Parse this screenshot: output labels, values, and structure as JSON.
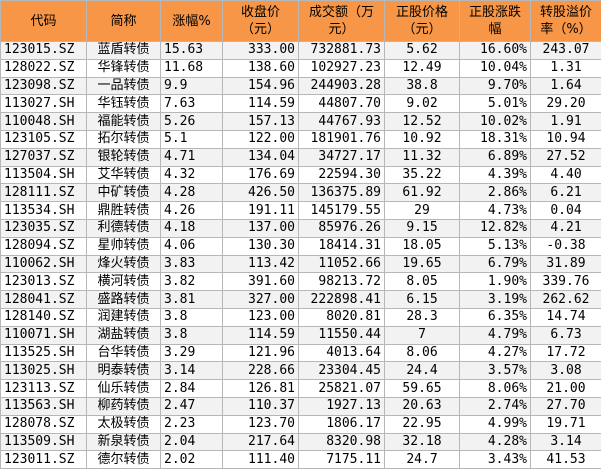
{
  "table": {
    "header": [
      "代码",
      "简称",
      "涨幅%",
      "收盘价（元）",
      "成交额（万元）",
      "正股价格（元）",
      "正股涨跌幅",
      "转股溢价率（%）"
    ],
    "rows": [
      [
        "123015.SZ",
        "蓝盾转债",
        "15.63",
        "333.00",
        "732881.73",
        "5.62",
        "16.60%",
        "243.07"
      ],
      [
        "128022.SZ",
        "华锋转债",
        "11.68",
        "138.60",
        "102927.23",
        "12.49",
        "10.04%",
        "1.31"
      ],
      [
        "123098.SZ",
        "一品转债",
        "9.9",
        "154.96",
        "244903.28",
        "38.8",
        "9.70%",
        "1.64"
      ],
      [
        "113027.SH",
        "华钰转债",
        "7.63",
        "114.59",
        "44807.70",
        "9.02",
        "5.01%",
        "29.20"
      ],
      [
        "110048.SH",
        "福能转债",
        "5.26",
        "157.13",
        "44767.93",
        "12.52",
        "10.02%",
        "1.91"
      ],
      [
        "123105.SZ",
        "拓尔转债",
        "5.1",
        "122.00",
        "181901.76",
        "10.92",
        "18.31%",
        "10.94"
      ],
      [
        "127037.SZ",
        "银轮转债",
        "4.71",
        "134.04",
        "34727.17",
        "11.32",
        "6.89%",
        "27.52"
      ],
      [
        "113504.SH",
        "艾华转债",
        "4.32",
        "176.69",
        "22594.30",
        "35.22",
        "4.39%",
        "4.40"
      ],
      [
        "128111.SZ",
        "中矿转债",
        "4.28",
        "426.50",
        "136375.89",
        "61.92",
        "2.86%",
        "6.21"
      ],
      [
        "113534.SH",
        "鼎胜转债",
        "4.26",
        "191.11",
        "145179.55",
        "29",
        "4.73%",
        "0.04"
      ],
      [
        "123035.SZ",
        "利德转债",
        "4.18",
        "137.00",
        "85976.26",
        "9.15",
        "12.82%",
        "4.21"
      ],
      [
        "128094.SZ",
        "星帅转债",
        "4.06",
        "130.30",
        "18414.31",
        "18.05",
        "5.13%",
        "-0.38"
      ],
      [
        "110062.SH",
        "烽火转债",
        "3.83",
        "113.42",
        "11052.66",
        "19.65",
        "6.79%",
        "31.89"
      ],
      [
        "123013.SZ",
        "横河转债",
        "3.82",
        "391.60",
        "98213.72",
        "8.05",
        "1.90%",
        "339.76"
      ],
      [
        "128041.SZ",
        "盛路转债",
        "3.81",
        "327.00",
        "222898.41",
        "6.15",
        "3.19%",
        "262.62"
      ],
      [
        "128140.SZ",
        "润建转债",
        "3.8",
        "123.00",
        "8020.81",
        "28.3",
        "6.35%",
        "14.74"
      ],
      [
        "110071.SH",
        "湖盐转债",
        "3.8",
        "114.59",
        "11550.44",
        "7",
        "4.79%",
        "6.73"
      ],
      [
        "113525.SH",
        "台华转债",
        "3.29",
        "121.96",
        "4013.64",
        "8.06",
        "4.27%",
        "17.72"
      ],
      [
        "113025.SH",
        "明泰转债",
        "3.14",
        "228.66",
        "23304.45",
        "24.4",
        "3.57%",
        "3.08"
      ],
      [
        "123113.SZ",
        "仙乐转债",
        "2.84",
        "126.81",
        "25821.07",
        "59.65",
        "8.06%",
        "21.00"
      ],
      [
        "113563.SH",
        "柳药转债",
        "2.47",
        "110.37",
        "1927.13",
        "20.63",
        "2.74%",
        "27.70"
      ],
      [
        "128078.SZ",
        "太极转债",
        "2.23",
        "123.70",
        "1806.17",
        "22.95",
        "4.99%",
        "19.71"
      ],
      [
        "113509.SH",
        "新泉转债",
        "2.04",
        "217.64",
        "8320.98",
        "32.18",
        "4.28%",
        "3.14"
      ],
      [
        "123011.SZ",
        "德尔转债",
        "2.02",
        "111.40",
        "7175.11",
        "24.7",
        "3.43%",
        "41.53"
      ]
    ]
  }
}
